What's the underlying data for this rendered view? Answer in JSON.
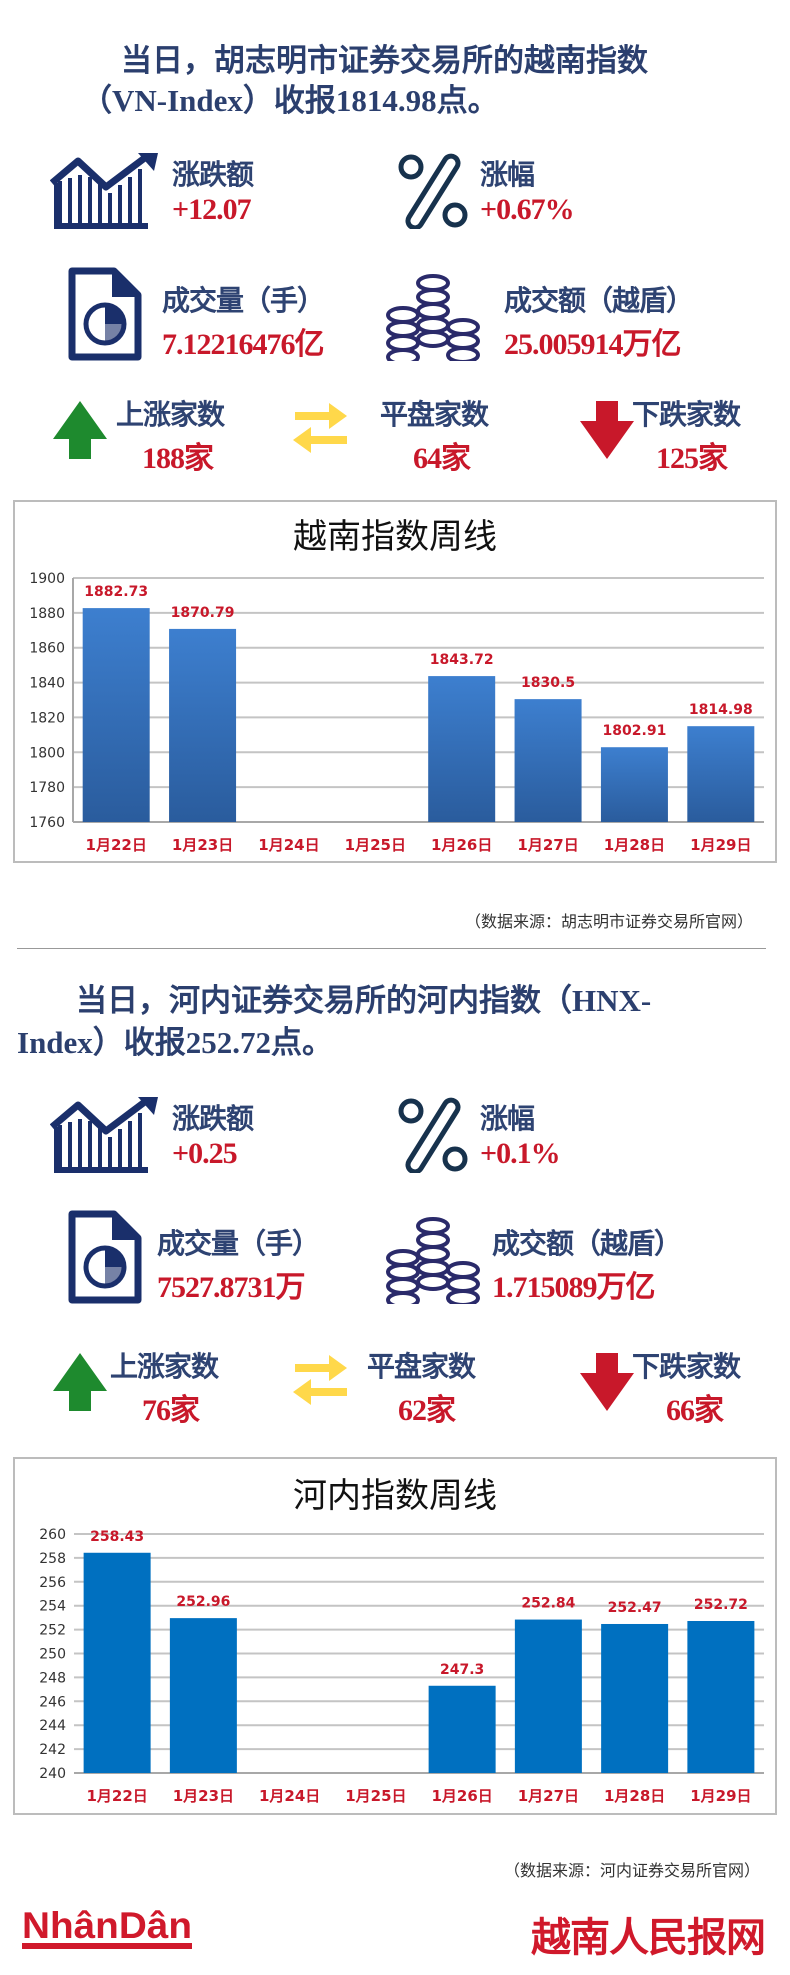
{
  "colors": {
    "navy": "#1a2f6b",
    "label": "#2e4372",
    "red": "#c8182a",
    "green": "#1e8a2e",
    "yellow": "#ffd84a",
    "bar1_top": "#3d7fcf",
    "bar1_bottom": "#2a5c9d",
    "bar2": "#0070c0"
  },
  "sections": [
    {
      "headline_1": "当日，胡志明市证券交易所的越南指数",
      "headline_2": "（VN-Index）收报1814.98点。",
      "change_label": "涨跌额",
      "change_value": "+12.07",
      "pct_label": "涨幅",
      "pct_value": "+0.67%",
      "volume_label": "成交量（手）",
      "volume_value": "7.12216476亿",
      "turnover_label": "成交额（越盾）",
      "turnover_value": "25.005914万亿",
      "up_label": "上涨家数",
      "up_value": "188家",
      "flat_label": "平盘家数",
      "flat_value": "64家",
      "down_label": "下跌家数",
      "down_value": "125家",
      "source": "（数据来源：胡志明市证券交易所官网）"
    },
    {
      "headline_1": "当日，河内证券交易所的河内指数（HNX-",
      "headline_2": "Index）收报252.72点。",
      "change_label": "涨跌额",
      "change_value": "+0.25",
      "pct_label": "涨幅",
      "pct_value": "+0.1%",
      "volume_label": "成交量（手）",
      "volume_value": "7527.8731万",
      "turnover_label": "成交额（越盾）",
      "turnover_value": "1.715089万亿",
      "up_label": "上涨家数",
      "up_value": "76家",
      "flat_label": "平盘家数",
      "flat_value": "62家",
      "down_label": "下跌家数",
      "down_value": "66家",
      "source": "（数据来源：河内证券交易所官网）"
    }
  ],
  "chart_data": [
    {
      "type": "bar",
      "title": "越南指数周线",
      "categories": [
        "1月22日",
        "1月23日",
        "1月24日",
        "1月25日",
        "1月26日",
        "1月27日",
        "1月28日",
        "1月29日"
      ],
      "values": [
        1882.73,
        1870.79,
        null,
        null,
        1843.72,
        1830.5,
        1802.91,
        1814.98
      ],
      "value_labels": [
        "1882.73",
        "1870.79",
        "",
        "",
        "1843.72",
        "1830.5",
        "1802.91",
        "1814.98"
      ],
      "ylim": [
        1760,
        1900
      ],
      "yticks": [
        "1760",
        "1780",
        "1800",
        "1820",
        "1840",
        "1860",
        "1880",
        "1900"
      ],
      "grid": true
    },
    {
      "type": "bar",
      "title": "河内指数周线",
      "categories": [
        "1月22日",
        "1月23日",
        "1月24日",
        "1月25日",
        "1月26日",
        "1月27日",
        "1月28日",
        "1月29日"
      ],
      "values": [
        258.43,
        252.96,
        null,
        null,
        247.3,
        252.84,
        252.47,
        252.72
      ],
      "value_labels": [
        "258.43",
        "252.96",
        "",
        "",
        "247.3",
        "252.84",
        "252.47",
        "252.72"
      ],
      "ylim": [
        240,
        260
      ],
      "yticks": [
        "240",
        "242",
        "244",
        "246",
        "248",
        "250",
        "252",
        "254",
        "256",
        "258",
        "260"
      ],
      "grid": true
    }
  ],
  "footer": {
    "logo_left": "NhânDân",
    "logo_right": "越南人民报网"
  }
}
